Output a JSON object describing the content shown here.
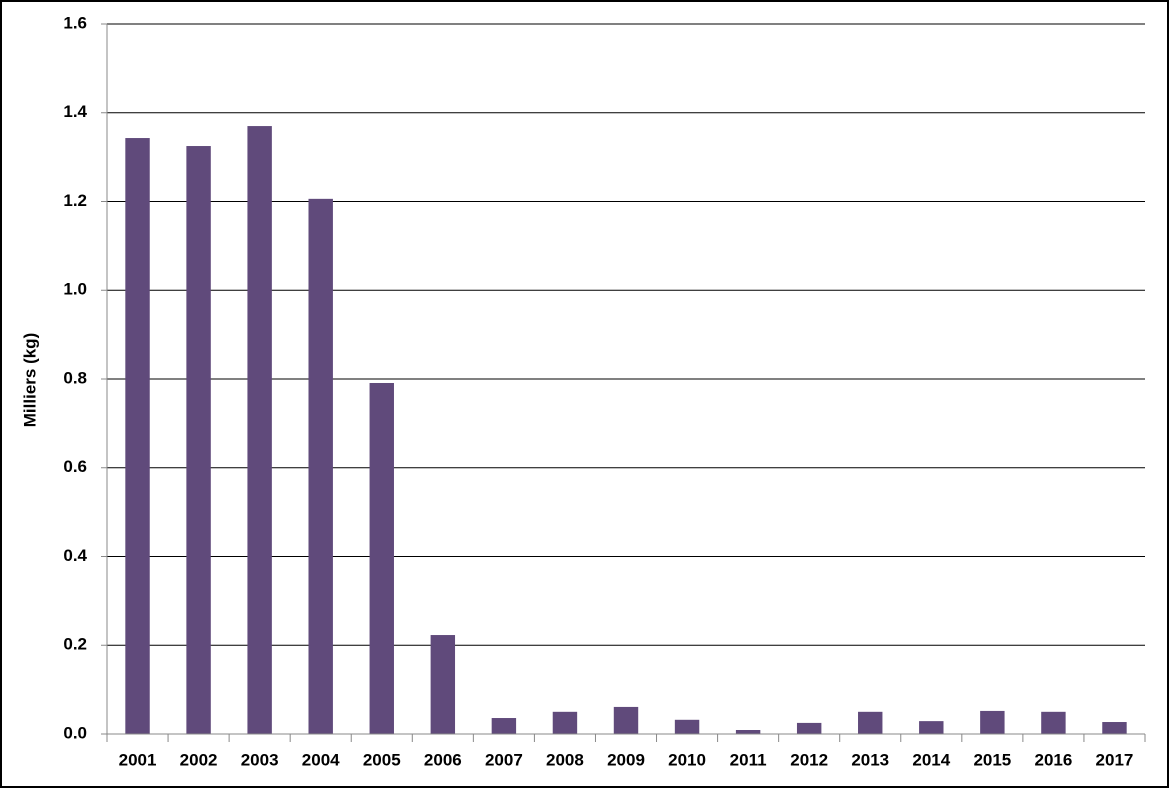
{
  "chart_data": {
    "type": "bar",
    "y_label": "Milliers (kg)",
    "categories": [
      "2001",
      "2002",
      "2003",
      "2004",
      "2005",
      "2006",
      "2007",
      "2008",
      "2009",
      "2010",
      "2011",
      "2012",
      "2013",
      "2014",
      "2015",
      "2016",
      "2017"
    ],
    "values": [
      1.343,
      1.325,
      1.37,
      1.206,
      0.791,
      0.223,
      0.036,
      0.05,
      0.061,
      0.032,
      0.009,
      0.025,
      0.05,
      0.029,
      0.052,
      0.05,
      0.027
    ],
    "color": "#604a7b",
    "ylim": [
      0,
      1.6
    ],
    "yticks": [
      {
        "value": 0,
        "label": "0.0"
      },
      0.2,
      0.4,
      0.6,
      0.8,
      {
        "value": 1,
        "label": "1.0"
      },
      1.2,
      1.4,
      1.6
    ],
    "grid": true
  }
}
